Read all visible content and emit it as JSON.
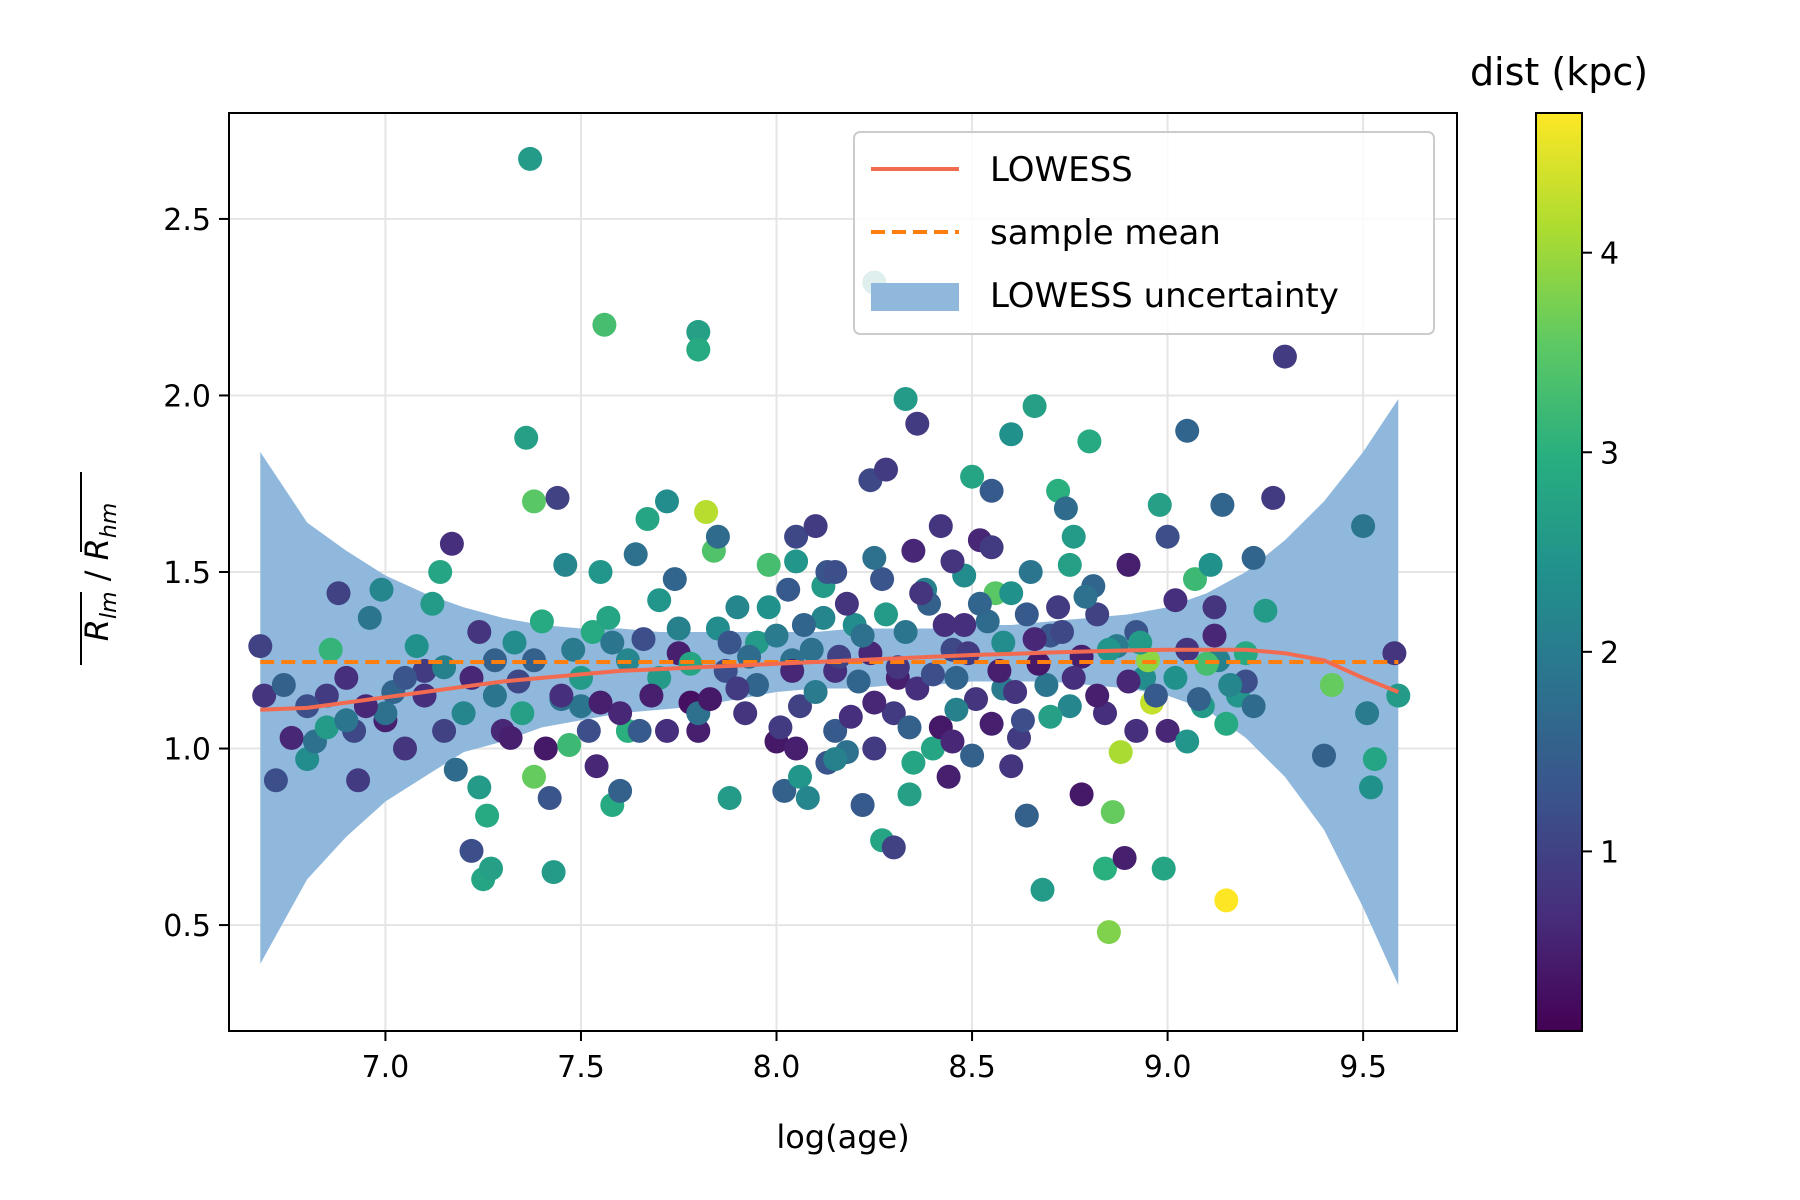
{
  "chart_data": {
    "type": "scatter",
    "xlabel": "log(age)",
    "ylabel": "R_lm / R_hm",
    "ylabel_parts": {
      "num": "R",
      "num_sub": "lm",
      "sep": " / ",
      "den": "R",
      "den_sub": "hm"
    },
    "xlim": [
      6.6,
      9.74
    ],
    "ylim": [
      0.2,
      2.8
    ],
    "xticks": [
      7.0,
      7.5,
      8.0,
      8.5,
      9.0,
      9.5
    ],
    "xtick_labels": [
      "7.0",
      "7.5",
      "8.0",
      "8.5",
      "9.0",
      "9.5"
    ],
    "yticks": [
      0.5,
      1.0,
      1.5,
      2.0,
      2.5
    ],
    "ytick_labels": [
      "0.5",
      "1.0",
      "1.5",
      "2.0",
      "2.5"
    ],
    "grid": true,
    "legend": {
      "position": "top-right",
      "entries": [
        {
          "label": "LOWESS",
          "style": "solid-line",
          "color": "#f26b50"
        },
        {
          "label": "sample mean",
          "style": "dashed-line",
          "color": "#ff7f0e"
        },
        {
          "label": "LOWESS uncertainty",
          "style": "patch",
          "color": "#8fb8dc"
        }
      ]
    },
    "colorbar": {
      "title": "dist (kpc)",
      "colormap": "viridis",
      "range": [
        0.1,
        4.7
      ],
      "ticks": [
        1,
        2,
        3,
        4
      ],
      "tick_labels": [
        "1",
        "2",
        "3",
        "4"
      ]
    },
    "sample_mean": 1.245,
    "lowess": {
      "x": [
        6.68,
        6.8,
        6.9,
        7.0,
        7.1,
        7.2,
        7.3,
        7.4,
        7.5,
        7.6,
        7.7,
        7.8,
        7.9,
        8.0,
        8.1,
        8.2,
        8.3,
        8.4,
        8.5,
        8.6,
        8.7,
        8.8,
        8.9,
        9.0,
        9.1,
        9.2,
        9.3,
        9.4,
        9.5,
        9.59
      ],
      "y": [
        1.11,
        1.115,
        1.13,
        1.145,
        1.16,
        1.175,
        1.19,
        1.2,
        1.21,
        1.22,
        1.225,
        1.23,
        1.235,
        1.24,
        1.245,
        1.25,
        1.255,
        1.26,
        1.265,
        1.268,
        1.272,
        1.275,
        1.278,
        1.28,
        1.28,
        1.28,
        1.27,
        1.25,
        1.2,
        1.16
      ]
    },
    "uncertainty_band": {
      "x": [
        6.68,
        6.8,
        6.9,
        7.0,
        7.1,
        7.2,
        7.3,
        7.4,
        7.5,
        7.6,
        7.7,
        7.8,
        7.9,
        8.0,
        8.1,
        8.2,
        8.3,
        8.4,
        8.5,
        8.6,
        8.7,
        8.8,
        8.9,
        9.0,
        9.1,
        9.2,
        9.3,
        9.4,
        9.5,
        9.59
      ],
      "lower": [
        0.39,
        0.63,
        0.75,
        0.85,
        0.92,
        0.99,
        1.02,
        1.06,
        1.08,
        1.1,
        1.11,
        1.12,
        1.14,
        1.16,
        1.17,
        1.17,
        1.18,
        1.18,
        1.19,
        1.19,
        1.19,
        1.18,
        1.17,
        1.15,
        1.11,
        1.03,
        0.92,
        0.77,
        0.55,
        0.33
      ],
      "upper": [
        1.84,
        1.64,
        1.56,
        1.49,
        1.44,
        1.4,
        1.37,
        1.35,
        1.34,
        1.34,
        1.33,
        1.33,
        1.33,
        1.33,
        1.33,
        1.34,
        1.34,
        1.34,
        1.35,
        1.35,
        1.36,
        1.37,
        1.38,
        1.4,
        1.44,
        1.5,
        1.59,
        1.7,
        1.84,
        1.99
      ]
    },
    "points": [
      [
        6.68,
        1.29,
        1.0
      ],
      [
        6.69,
        1.15,
        0.8
      ],
      [
        6.72,
        0.91,
        1.2
      ],
      [
        6.74,
        1.18,
        1.5
      ],
      [
        6.76,
        1.03,
        0.6
      ],
      [
        6.8,
        0.97,
        2.3
      ],
      [
        6.82,
        1.02,
        1.8
      ],
      [
        6.85,
        1.06,
        2.6
      ],
      [
        6.86,
        1.28,
        3.1
      ],
      [
        6.88,
        1.44,
        1.0
      ],
      [
        6.9,
        1.2,
        0.7
      ],
      [
        6.92,
        1.05,
        1.1
      ],
      [
        6.93,
        0.91,
        0.9
      ],
      [
        6.96,
        1.37,
        1.9
      ],
      [
        6.99,
        1.45,
        2.2
      ],
      [
        7.0,
        1.08,
        0.5
      ],
      [
        7.02,
        1.16,
        1.6
      ],
      [
        7.05,
        1.0,
        0.8
      ],
      [
        7.08,
        1.29,
        2.4
      ],
      [
        7.1,
        1.22,
        0.9
      ],
      [
        7.12,
        1.41,
        2.6
      ],
      [
        7.14,
        1.5,
        2.8
      ],
      [
        7.15,
        1.23,
        2.1
      ],
      [
        7.17,
        1.58,
        0.7
      ],
      [
        7.18,
        0.94,
        1.7
      ],
      [
        7.22,
        0.71,
        1.2
      ],
      [
        7.24,
        0.89,
        2.6
      ],
      [
        7.24,
        1.33,
        0.8
      ],
      [
        7.25,
        0.63,
        2.8
      ],
      [
        7.26,
        0.81,
        2.9
      ],
      [
        7.27,
        0.66,
        2.7
      ],
      [
        7.28,
        1.25,
        1.5
      ],
      [
        7.3,
        1.05,
        0.6
      ],
      [
        7.33,
        1.3,
        2.3
      ],
      [
        7.34,
        1.19,
        1.1
      ],
      [
        7.36,
        1.88,
        2.7
      ],
      [
        7.37,
        2.67,
        2.6
      ],
      [
        7.38,
        1.7,
        3.5
      ],
      [
        7.38,
        0.92,
        3.6
      ],
      [
        7.4,
        1.36,
        2.9
      ],
      [
        7.41,
        1.0,
        0.4
      ],
      [
        7.42,
        0.86,
        1.3
      ],
      [
        7.43,
        0.65,
        2.6
      ],
      [
        7.44,
        1.71,
        1.0
      ],
      [
        7.45,
        1.14,
        1.8
      ],
      [
        7.46,
        1.52,
        2.2
      ],
      [
        7.47,
        1.01,
        3.2
      ],
      [
        7.5,
        1.12,
        1.9
      ],
      [
        7.53,
        1.33,
        2.9
      ],
      [
        7.54,
        0.95,
        0.6
      ],
      [
        7.55,
        1.5,
        2.5
      ],
      [
        7.56,
        2.2,
        3.3
      ],
      [
        7.57,
        1.37,
        2.8
      ],
      [
        7.58,
        0.84,
        2.9
      ],
      [
        7.6,
        0.88,
        1.5
      ],
      [
        7.62,
        1.05,
        3.0
      ],
      [
        7.64,
        1.55,
        1.8
      ],
      [
        7.66,
        1.31,
        1.2
      ],
      [
        7.67,
        1.65,
        2.8
      ],
      [
        7.7,
        1.42,
        2.5
      ],
      [
        7.72,
        1.7,
        2.3
      ],
      [
        7.74,
        1.48,
        1.6
      ],
      [
        7.75,
        1.34,
        2.1
      ],
      [
        7.78,
        1.13,
        0.3
      ],
      [
        7.8,
        1.05,
        0.5
      ],
      [
        7.8,
        2.18,
        2.7
      ],
      [
        7.8,
        2.13,
        2.9
      ],
      [
        7.82,
        1.67,
        4.2
      ],
      [
        7.84,
        1.56,
        3.4
      ],
      [
        7.85,
        1.6,
        1.7
      ],
      [
        7.87,
        1.22,
        1.2
      ],
      [
        7.88,
        0.86,
        2.6
      ],
      [
        7.9,
        1.4,
        2.2
      ],
      [
        7.92,
        1.1,
        0.8
      ],
      [
        7.95,
        1.3,
        2.6
      ],
      [
        7.98,
        1.52,
        3.3
      ],
      [
        8.0,
        1.02,
        0.4
      ],
      [
        8.02,
        0.88,
        1.5
      ],
      [
        8.04,
        1.25,
        1.8
      ],
      [
        8.05,
        1.6,
        1.1
      ],
      [
        8.06,
        0.92,
        2.5
      ],
      [
        8.08,
        0.86,
        2.2
      ],
      [
        8.1,
        1.63,
        0.9
      ],
      [
        8.12,
        1.46,
        2.6
      ],
      [
        8.13,
        0.96,
        1.3
      ],
      [
        8.15,
        1.22,
        0.7
      ],
      [
        8.18,
        0.99,
        1.8
      ],
      [
        8.2,
        1.35,
        2.3
      ],
      [
        8.22,
        0.84,
        1.4
      ],
      [
        8.24,
        1.76,
        1.1
      ],
      [
        8.25,
        2.32,
        2.4
      ],
      [
        8.27,
        0.74,
        2.8
      ],
      [
        8.28,
        1.79,
        0.9
      ],
      [
        8.3,
        0.72,
        1.0
      ],
      [
        8.31,
        1.2,
        0.5
      ],
      [
        8.33,
        1.99,
        2.6
      ],
      [
        8.34,
        0.87,
        2.7
      ],
      [
        8.36,
        1.92,
        0.9
      ],
      [
        8.38,
        1.45,
        2.1
      ],
      [
        8.4,
        1.0,
        2.8
      ],
      [
        8.42,
        1.63,
        0.8
      ],
      [
        8.44,
        0.92,
        0.5
      ],
      [
        8.46,
        1.2,
        1.6
      ],
      [
        8.48,
        1.35,
        0.7
      ],
      [
        8.5,
        1.77,
        2.8
      ],
      [
        8.52,
        1.59,
        0.6
      ],
      [
        8.55,
        1.73,
        1.4
      ],
      [
        8.56,
        1.44,
        3.5
      ],
      [
        8.58,
        1.17,
        2.0
      ],
      [
        8.6,
        1.89,
        2.4
      ],
      [
        8.62,
        1.03,
        0.9
      ],
      [
        8.64,
        0.81,
        1.5
      ],
      [
        8.66,
        1.97,
        2.7
      ],
      [
        8.68,
        0.6,
        2.6
      ],
      [
        8.7,
        1.32,
        1.3
      ],
      [
        8.72,
        1.73,
        3.0
      ],
      [
        8.74,
        1.68,
        1.7
      ],
      [
        8.76,
        1.6,
        2.6
      ],
      [
        8.78,
        0.87,
        0.4
      ],
      [
        8.8,
        1.87,
        2.9
      ],
      [
        8.82,
        1.38,
        1.0
      ],
      [
        8.84,
        0.66,
        3.0
      ],
      [
        8.85,
        0.48,
        3.8
      ],
      [
        8.86,
        0.82,
        3.6
      ],
      [
        8.88,
        0.99,
        4.1
      ],
      [
        8.89,
        0.69,
        0.5
      ],
      [
        8.9,
        1.52,
        0.5
      ],
      [
        8.92,
        1.33,
        1.3
      ],
      [
        8.94,
        1.2,
        2.3
      ],
      [
        8.96,
        1.13,
        4.3
      ],
      [
        8.98,
        1.69,
        2.7
      ],
      [
        8.99,
        0.66,
        2.8
      ],
      [
        9.0,
        1.6,
        1.2
      ],
      [
        9.02,
        1.42,
        0.7
      ],
      [
        9.05,
        1.9,
        1.6
      ],
      [
        9.07,
        1.48,
        3.2
      ],
      [
        9.09,
        1.12,
        2.6
      ],
      [
        9.11,
        1.52,
        2.4
      ],
      [
        9.13,
        1.25,
        2.1
      ],
      [
        9.14,
        1.69,
        1.6
      ],
      [
        9.15,
        1.07,
        2.9
      ],
      [
        9.15,
        0.57,
        4.7
      ],
      [
        9.18,
        1.15,
        2.5
      ],
      [
        9.2,
        1.19,
        1.2
      ],
      [
        9.22,
        1.54,
        1.6
      ],
      [
        9.25,
        1.39,
        2.6
      ],
      [
        9.27,
        1.71,
        0.9
      ],
      [
        9.3,
        2.11,
        0.9
      ],
      [
        9.4,
        0.98,
        1.5
      ],
      [
        9.42,
        1.18,
        3.6
      ],
      [
        9.5,
        1.63,
        1.9
      ],
      [
        9.51,
        1.1,
        2.0
      ],
      [
        9.52,
        0.89,
        2.4
      ],
      [
        9.53,
        0.97,
        2.8
      ],
      [
        9.58,
        1.27,
        0.8
      ],
      [
        9.59,
        1.15,
        2.6
      ],
      [
        7.95,
        1.18,
        1.6
      ],
      [
        8.0,
        1.32,
        2.0
      ],
      [
        8.03,
        1.45,
        1.4
      ],
      [
        8.06,
        1.12,
        1.0
      ],
      [
        8.09,
        1.28,
        1.8
      ],
      [
        8.12,
        1.37,
        2.2
      ],
      [
        8.15,
        1.05,
        1.4
      ],
      [
        8.18,
        1.41,
        0.8
      ],
      [
        8.21,
        1.19,
        1.6
      ],
      [
        8.24,
        1.27,
        0.6
      ],
      [
        8.27,
        1.48,
        1.3
      ],
      [
        8.3,
        1.1,
        0.9
      ],
      [
        8.33,
        1.33,
        1.9
      ],
      [
        8.36,
        1.17,
        0.7
      ],
      [
        8.39,
        1.41,
        1.5
      ],
      [
        8.42,
        1.06,
        0.4
      ],
      [
        8.45,
        1.28,
        1.1
      ],
      [
        8.48,
        1.49,
        2.3
      ],
      [
        8.51,
        1.14,
        0.8
      ],
      [
        8.54,
        1.36,
        1.7
      ],
      [
        8.57,
        1.22,
        0.5
      ],
      [
        8.6,
        1.44,
        2.4
      ],
      [
        8.63,
        1.08,
        1.2
      ],
      [
        8.66,
        1.31,
        0.6
      ],
      [
        8.69,
        1.18,
        1.9
      ],
      [
        8.72,
        1.4,
        0.9
      ],
      [
        8.75,
        1.12,
        2.2
      ],
      [
        8.78,
        1.26,
        0.5
      ],
      [
        8.81,
        1.46,
        1.6
      ],
      [
        8.84,
        1.1,
        0.7
      ],
      [
        8.87,
        1.29,
        2.0
      ],
      [
        8.9,
        1.19,
        0.6
      ],
      [
        7.98,
        1.4,
        2.4
      ],
      [
        8.01,
        1.06,
        0.9
      ],
      [
        8.04,
        1.22,
        0.6
      ],
      [
        8.07,
        1.35,
        1.6
      ],
      [
        8.1,
        1.16,
        2.0
      ],
      [
        8.13,
        1.5,
        1.3
      ],
      [
        8.16,
        1.26,
        1.0
      ],
      [
        8.19,
        1.09,
        0.7
      ],
      [
        8.22,
        1.32,
        1.8
      ],
      [
        8.25,
        1.13,
        0.6
      ],
      [
        8.28,
        1.38,
        2.6
      ],
      [
        8.31,
        1.23,
        0.8
      ],
      [
        8.34,
        1.06,
        1.5
      ],
      [
        8.37,
        1.44,
        0.8
      ],
      [
        8.4,
        1.21,
        1.2
      ],
      [
        8.43,
        1.35,
        0.7
      ],
      [
        8.46,
        1.11,
        2.1
      ],
      [
        8.49,
        1.27,
        0.9
      ],
      [
        8.52,
        1.41,
        1.6
      ],
      [
        8.55,
        1.07,
        0.5
      ],
      [
        8.58,
        1.3,
        2.3
      ],
      [
        8.61,
        1.16,
        0.8
      ],
      [
        8.64,
        1.38,
        1.4
      ],
      [
        8.67,
        1.24,
        0.4
      ],
      [
        8.7,
        1.09,
        2.7
      ],
      [
        8.73,
        1.33,
        1.1
      ],
      [
        8.76,
        1.2,
        0.7
      ],
      [
        8.79,
        1.43,
        1.8
      ],
      [
        8.82,
        1.15,
        0.5
      ],
      [
        8.85,
        1.28,
        2.5
      ],
      [
        7.7,
        1.2,
        2.6
      ],
      [
        7.75,
        1.27,
        0.5
      ],
      [
        7.8,
        1.1,
        1.8
      ],
      [
        7.85,
        1.34,
        2.3
      ],
      [
        7.9,
        1.17,
        0.9
      ],
      [
        7.93,
        1.26,
        1.7
      ],
      [
        7.72,
        1.05,
        0.7
      ],
      [
        7.78,
        1.24,
        2.8
      ],
      [
        7.83,
        1.14,
        0.4
      ],
      [
        7.88,
        1.3,
        1.3
      ],
      [
        7.6,
        1.1,
        0.6
      ],
      [
        7.62,
        1.25,
        2.2
      ],
      [
        7.65,
        1.05,
        1.4
      ],
      [
        7.68,
        1.15,
        0.5
      ],
      [
        7.5,
        1.2,
        2.6
      ],
      [
        7.52,
        1.05,
        1.2
      ],
      [
        7.45,
        1.15,
        0.7
      ],
      [
        7.48,
        1.28,
        2.0
      ],
      [
        7.55,
        1.13,
        0.5
      ],
      [
        7.58,
        1.3,
        1.9
      ],
      [
        7.35,
        1.1,
        2.7
      ],
      [
        7.38,
        1.25,
        1.5
      ],
      [
        7.32,
        1.03,
        0.5
      ],
      [
        7.28,
        1.15,
        1.9
      ],
      [
        7.2,
        1.1,
        2.2
      ],
      [
        7.22,
        1.2,
        0.6
      ],
      [
        7.15,
        1.05,
        1.0
      ],
      [
        7.1,
        1.15,
        0.7
      ],
      [
        7.05,
        1.2,
        1.3
      ],
      [
        7.0,
        1.1,
        1.8
      ],
      [
        6.95,
        1.12,
        0.6
      ],
      [
        6.9,
        1.08,
        1.9
      ],
      [
        6.85,
        1.15,
        0.9
      ],
      [
        6.8,
        1.12,
        1.2
      ],
      [
        9.0,
        1.05,
        0.6
      ],
      [
        9.02,
        1.2,
        2.4
      ],
      [
        9.05,
        1.28,
        0.8
      ],
      [
        9.08,
        1.14,
        1.5
      ],
      [
        9.1,
        1.24,
        3.3
      ],
      [
        9.12,
        1.32,
        0.6
      ],
      [
        9.16,
        1.18,
        2.2
      ],
      [
        9.2,
        1.27,
        2.9
      ],
      [
        9.22,
        1.12,
        1.7
      ],
      [
        9.12,
        1.4,
        0.8
      ],
      [
        8.95,
        1.25,
        3.9
      ],
      [
        8.97,
        1.15,
        1.4
      ],
      [
        8.92,
        1.05,
        0.7
      ],
      [
        8.93,
        1.3,
        2.6
      ],
      [
        9.05,
        1.02,
        2.5
      ],
      [
        8.6,
        0.95,
        0.8
      ],
      [
        8.5,
        0.98,
        1.5
      ],
      [
        8.45,
        1.02,
        0.6
      ],
      [
        8.35,
        0.96,
        2.8
      ],
      [
        8.25,
        1.0,
        0.9
      ],
      [
        8.15,
        0.97,
        2.1
      ],
      [
        8.05,
        1.0,
        0.5
      ],
      [
        8.55,
        1.57,
        0.9
      ],
      [
        8.65,
        1.5,
        1.9
      ],
      [
        8.75,
        1.52,
        2.7
      ],
      [
        8.45,
        1.53,
        0.8
      ],
      [
        8.35,
        1.56,
        0.6
      ],
      [
        8.25,
        1.54,
        1.8
      ],
      [
        8.15,
        1.5,
        1.2
      ],
      [
        8.05,
        1.53,
        2.5
      ]
    ]
  }
}
